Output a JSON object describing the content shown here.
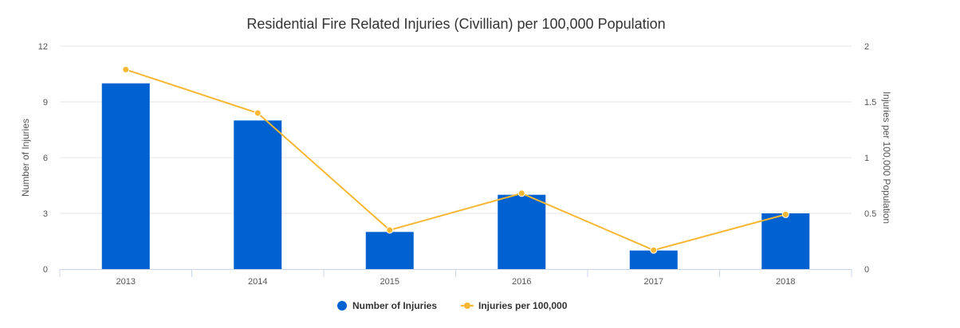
{
  "chart_data": {
    "type": "bar+line",
    "title": "Residential Fire Related Injuries (Civillian) per 100,000 Population",
    "categories": [
      "2013",
      "2014",
      "2015",
      "2016",
      "2017",
      "2018"
    ],
    "series": [
      {
        "name": "Number of Injuries",
        "type": "bar",
        "axis": "left",
        "color": "#0061d1",
        "values": [
          10,
          8,
          2,
          4,
          1,
          3
        ]
      },
      {
        "name": "Injuries per 100,000",
        "type": "line",
        "axis": "right",
        "color": "#f7b733",
        "values": [
          1.79,
          1.4,
          0.35,
          0.68,
          0.17,
          0.49
        ]
      }
    ],
    "y_left": {
      "label": "Number of Injuries",
      "ylim": [
        0,
        12
      ],
      "ticks": [
        "0",
        "3",
        "6",
        "9",
        "12"
      ]
    },
    "y_right": {
      "label": "Injuries per 100,000 Population",
      "ylim": [
        0,
        2
      ],
      "ticks": [
        "0",
        "0.5",
        "1",
        "1.5",
        "2"
      ]
    },
    "grid": true,
    "legend_position": "bottom-center"
  }
}
